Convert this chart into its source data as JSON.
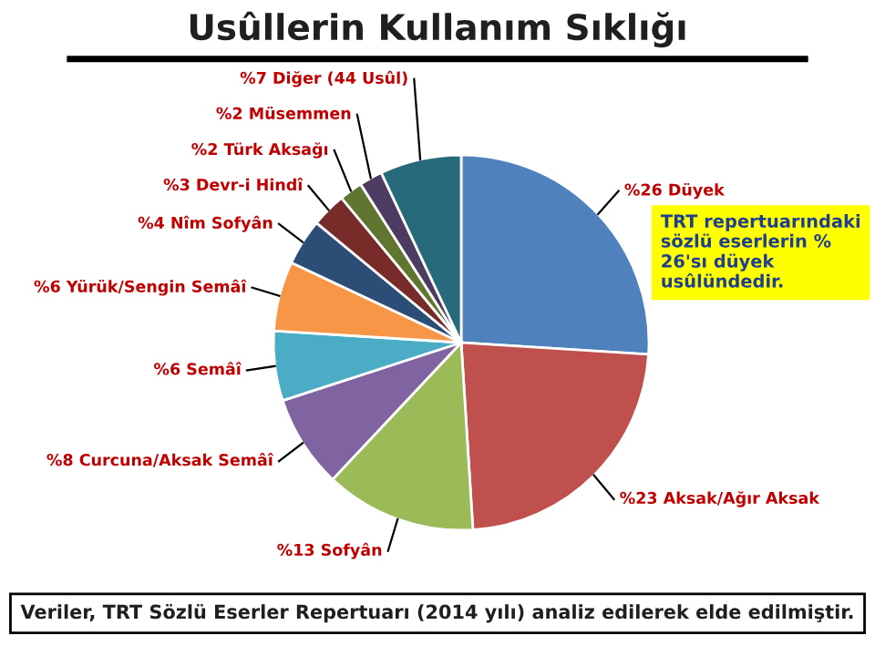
{
  "chart_data": {
    "type": "pie",
    "title": "Usûllerin Kullanım Sıklığı",
    "categories": [
      "Düyek",
      "Aksak/Ağır Aksak",
      "Sofyân",
      "Curcuna/Aksak Semâî",
      "Semâî",
      "Yürük/Sengin Semâî",
      "Nîm Sofyân",
      "Devr-i Hindî",
      "Türk Aksağı",
      "Müsemmen",
      "Diğer (44 Usûl)"
    ],
    "values": [
      26,
      23,
      13,
      8,
      6,
      6,
      4,
      3,
      2,
      2,
      7
    ],
    "value_labels": [
      "%26",
      "%23",
      "%13",
      "%8",
      "%6",
      "%6",
      "%4",
      "%3",
      "%2",
      "%2",
      "%7"
    ],
    "colors": [
      "#4f81bd",
      "#c0504d",
      "#9bbb59",
      "#8064a2",
      "#4bacc6",
      "#f79646",
      "#2c4d75",
      "#772c2a",
      "#5f7530",
      "#4d3b62",
      "#276a7c"
    ],
    "annotations": [
      "TRT repertuarındaki sözlü eserlerin % 26'sı düyek usûlündedir.",
      "Veriler, TRT Sözlü Eserler Repertuarı (2014 yılı) analiz edilerek elde edilmiştir."
    ],
    "legend": false
  }
}
